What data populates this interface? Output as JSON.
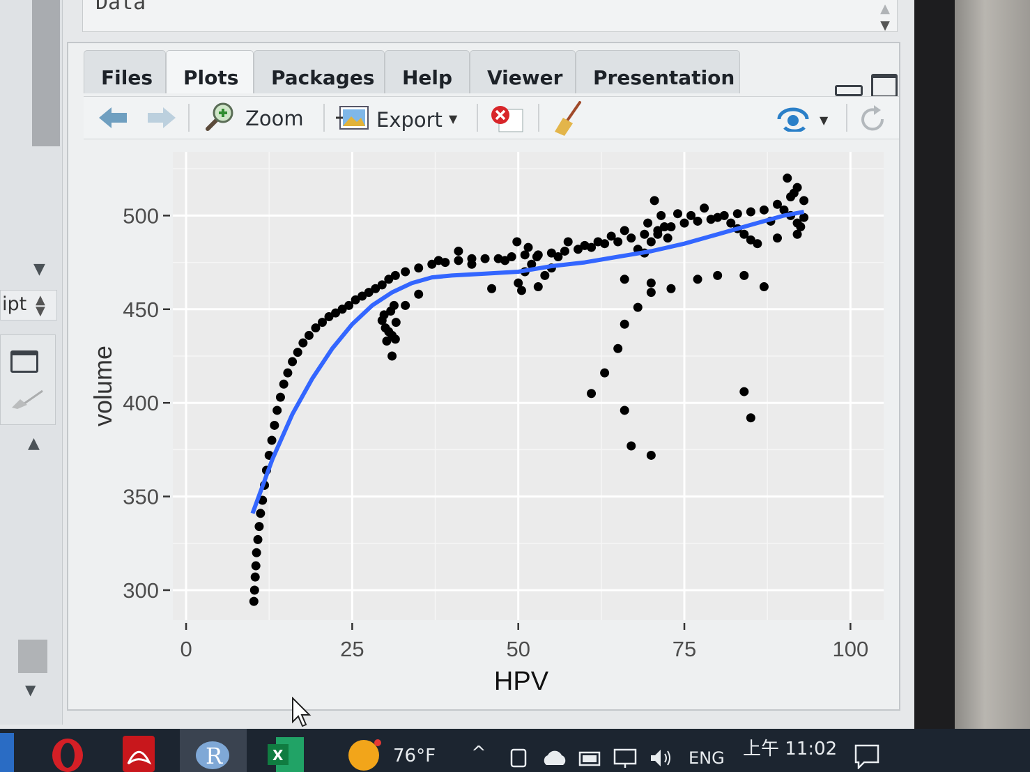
{
  "data_pane": {
    "label": "Data"
  },
  "left_pane": {
    "script_select": "ipt"
  },
  "tabs": [
    {
      "label": "Files"
    },
    {
      "label": "Plots"
    },
    {
      "label": "Packages"
    },
    {
      "label": "Help"
    },
    {
      "label": "Viewer"
    },
    {
      "label": "Presentation"
    }
  ],
  "toolbar": {
    "zoom_label": "Zoom",
    "export_label": "Export"
  },
  "chart_data": {
    "type": "scatter",
    "xlabel": "HPV",
    "ylabel": "volume",
    "xlim": [
      -2,
      105
    ],
    "ylim": [
      284,
      534
    ],
    "x_ticks": [
      0,
      25,
      50,
      75,
      100
    ],
    "y_ticks": [
      300,
      350,
      400,
      450,
      500
    ],
    "x_tick_labels": [
      "0",
      "25",
      "50",
      "75",
      "100"
    ],
    "y_tick_labels": [
      "300",
      "350",
      "400",
      "450",
      "500"
    ],
    "grid": true,
    "colors": {
      "points": "#000000",
      "smooth": "#3366ff",
      "panel": "#ebebeb"
    },
    "smooth_line": {
      "x": [
        10,
        13,
        16,
        19,
        22,
        25,
        28,
        31,
        34,
        37,
        40,
        45,
        50,
        55,
        60,
        65,
        70,
        75,
        80,
        85,
        90,
        93
      ],
      "y": [
        341,
        370,
        394,
        413,
        429,
        442,
        452,
        459,
        464,
        467,
        468,
        469,
        470,
        473,
        475,
        478,
        481,
        485,
        490,
        495,
        500,
        502
      ]
    },
    "points": [
      [
        10.2,
        294
      ],
      [
        10.3,
        300
      ],
      [
        10.4,
        307
      ],
      [
        10.5,
        313
      ],
      [
        10.6,
        320
      ],
      [
        10.8,
        327
      ],
      [
        11,
        334
      ],
      [
        11.2,
        341
      ],
      [
        11.5,
        348
      ],
      [
        11.8,
        356
      ],
      [
        12.1,
        364
      ],
      [
        12.5,
        372
      ],
      [
        12.9,
        380
      ],
      [
        13.3,
        388
      ],
      [
        13.7,
        396
      ],
      [
        14.2,
        403
      ],
      [
        14.7,
        410
      ],
      [
        15.3,
        416
      ],
      [
        16,
        422
      ],
      [
        16.8,
        427
      ],
      [
        17.6,
        432
      ],
      [
        18.5,
        436
      ],
      [
        19.5,
        440
      ],
      [
        20.5,
        443
      ],
      [
        21.5,
        446
      ],
      [
        22.5,
        448
      ],
      [
        23.5,
        450
      ],
      [
        24.5,
        452
      ],
      [
        25.5,
        455
      ],
      [
        26.5,
        457
      ],
      [
        27.5,
        459
      ],
      [
        28.5,
        461
      ],
      [
        29.5,
        463
      ],
      [
        30.5,
        466
      ],
      [
        31.5,
        468
      ],
      [
        33,
        470
      ],
      [
        35,
        472
      ],
      [
        37,
        474
      ],
      [
        39,
        475
      ],
      [
        41,
        476
      ],
      [
        43,
        477
      ],
      [
        45,
        477
      ],
      [
        47,
        477
      ],
      [
        49,
        478
      ],
      [
        51,
        479
      ],
      [
        53,
        479
      ],
      [
        55,
        480
      ],
      [
        57,
        481
      ],
      [
        59,
        482
      ],
      [
        61,
        483
      ],
      [
        63,
        485
      ],
      [
        65,
        486
      ],
      [
        67,
        488
      ],
      [
        69,
        490
      ],
      [
        71,
        492
      ],
      [
        73,
        494
      ],
      [
        75,
        496
      ],
      [
        77,
        497
      ],
      [
        79,
        498
      ],
      [
        81,
        500
      ],
      [
        83,
        501
      ],
      [
        85,
        502
      ],
      [
        87,
        503
      ],
      [
        89,
        506
      ],
      [
        91,
        510
      ],
      [
        92,
        515
      ],
      [
        93,
        508
      ],
      [
        29.5,
        444
      ],
      [
        30,
        440
      ],
      [
        30.5,
        438
      ],
      [
        31,
        436
      ],
      [
        31.5,
        434
      ],
      [
        29.8,
        447
      ],
      [
        30.8,
        449
      ],
      [
        31.3,
        452
      ],
      [
        30.2,
        433
      ],
      [
        31.6,
        443
      ],
      [
        31,
        425
      ],
      [
        33,
        452
      ],
      [
        35,
        458
      ],
      [
        38,
        476
      ],
      [
        41,
        481
      ],
      [
        43,
        474
      ],
      [
        46,
        461
      ],
      [
        48,
        476
      ],
      [
        50,
        464
      ],
      [
        50.5,
        460
      ],
      [
        51,
        470
      ],
      [
        51.5,
        483
      ],
      [
        52,
        474
      ],
      [
        53,
        462
      ],
      [
        54,
        468
      ],
      [
        49.8,
        486
      ],
      [
        52.8,
        478
      ],
      [
        55,
        472
      ],
      [
        56,
        478
      ],
      [
        57.5,
        486
      ],
      [
        60,
        484
      ],
      [
        62,
        486
      ],
      [
        64,
        489
      ],
      [
        66,
        492
      ],
      [
        68,
        482
      ],
      [
        69,
        480
      ],
      [
        70,
        486
      ],
      [
        71,
        490
      ],
      [
        72,
        494
      ],
      [
        70.5,
        508
      ],
      [
        71.5,
        500
      ],
      [
        69.5,
        496
      ],
      [
        72.5,
        488
      ],
      [
        74,
        501
      ],
      [
        76,
        500
      ],
      [
        78,
        504
      ],
      [
        80,
        499
      ],
      [
        82,
        496
      ],
      [
        83,
        493
      ],
      [
        84,
        490
      ],
      [
        85,
        487
      ],
      [
        86,
        485
      ],
      [
        88,
        497
      ],
      [
        89,
        488
      ],
      [
        90,
        503
      ],
      [
        91,
        500
      ],
      [
        92,
        496
      ],
      [
        92.5,
        494
      ],
      [
        93,
        499
      ],
      [
        90.5,
        520
      ],
      [
        91.5,
        512
      ],
      [
        92,
        490
      ],
      [
        61,
        405
      ],
      [
        63,
        416
      ],
      [
        65,
        429
      ],
      [
        66,
        442
      ],
      [
        68,
        451
      ],
      [
        70,
        459
      ],
      [
        73,
        461
      ],
      [
        77,
        466
      ],
      [
        80,
        468
      ],
      [
        84,
        468
      ],
      [
        87,
        462
      ],
      [
        66,
        396
      ],
      [
        67,
        377
      ],
      [
        70,
        372
      ],
      [
        84,
        406
      ],
      [
        85,
        392
      ],
      [
        70,
        464
      ],
      [
        66,
        466
      ]
    ]
  },
  "taskbar": {
    "weather": "76°F",
    "language": "ENG",
    "time": "上午 11:02"
  }
}
